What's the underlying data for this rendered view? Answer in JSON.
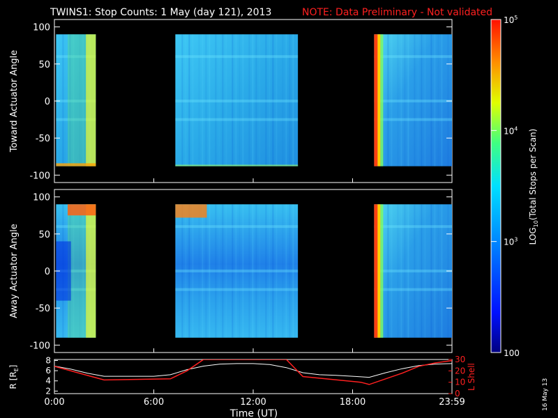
{
  "title": {
    "main": "TWINS1: Stop Counts:  1 May (day 121), 2013",
    "note": "NOTE: Data Preliminary - Not validated",
    "note_color": "#ff2020"
  },
  "stamp": "16 May 13",
  "colorbar": {
    "label_prefix": "LOG",
    "label_sub": "10",
    "label_suffix": "(Total Stops per Scan)",
    "ticks": [
      {
        "base": "10",
        "exp": "5",
        "value": 100000
      },
      {
        "base": "10",
        "exp": "4",
        "value": 10000
      },
      {
        "base": "10",
        "exp": "3",
        "value": 1000
      },
      {
        "base": "100",
        "exp": "",
        "value": 100
      }
    ],
    "range": [
      100,
      100000
    ],
    "scale": "log"
  },
  "chart_data": [
    {
      "type": "heatmap",
      "ylabel": "Toward Actuator Angle",
      "ylim": [
        -110,
        110
      ],
      "yticks": [
        "100",
        "50",
        "0",
        "-50",
        "-100"
      ],
      "xlim_hours": [
        0,
        24
      ],
      "data_y_range": [
        -88,
        90
      ],
      "segments_hours": [
        [
          0.1,
          2.5
        ],
        [
          7.3,
          14.7
        ],
        [
          19.3,
          24.0
        ]
      ],
      "gaps_hours": [
        [
          2.5,
          7.3
        ],
        [
          14.7,
          19.3
        ]
      ],
      "typical_counts": 1000,
      "peak_counts": 100000
    },
    {
      "type": "heatmap",
      "ylabel": "Away Actuator Angle",
      "ylim": [
        -110,
        110
      ],
      "yticks": [
        "100",
        "50",
        "0",
        "-50",
        "-100"
      ],
      "xlim_hours": [
        0,
        24
      ],
      "data_y_range": [
        -90,
        90
      ],
      "segments_hours": [
        [
          0.1,
          2.5
        ],
        [
          7.3,
          14.7
        ],
        [
          19.3,
          24.0
        ]
      ],
      "gaps_hours": [
        [
          2.5,
          7.3
        ],
        [
          14.7,
          19.3
        ]
      ],
      "typical_counts": 1000,
      "peak_counts": 100000
    },
    {
      "type": "line",
      "xlabel": "Time (UT)",
      "xticks": [
        "0:00",
        "6:00",
        "12:00",
        "18:00",
        "23:59"
      ],
      "xtick_hours": [
        0,
        6,
        12,
        18,
        24
      ],
      "left_axis": {
        "label_prefix": "R [R",
        "label_sub": "E",
        "label_suffix": "]",
        "yticks": [
          "8",
          "6",
          "4",
          "2"
        ],
        "ylim": [
          1.5,
          8.2
        ]
      },
      "right_axis": {
        "label": "L Shell",
        "yticks": [
          "30",
          "20",
          "10",
          "0"
        ],
        "ylim": [
          0,
          30
        ],
        "color": "#ff2020"
      },
      "series": [
        {
          "axis": "left",
          "color": "#ffffff",
          "x": [
            0,
            1,
            2,
            3,
            4,
            5,
            6,
            7,
            8,
            9,
            10,
            11,
            12,
            13,
            14,
            15,
            16,
            17,
            18,
            19,
            20,
            21,
            22,
            23,
            24
          ],
          "y": [
            6.9,
            6.3,
            5.5,
            4.9,
            4.9,
            4.9,
            4.9,
            5.2,
            6.2,
            6.9,
            7.3,
            7.4,
            7.4,
            7.2,
            6.6,
            5.6,
            5.2,
            5.1,
            4.9,
            4.7,
            5.6,
            6.4,
            7.0,
            7.3,
            7.4
          ]
        },
        {
          "axis": "right",
          "color": "#ff2020",
          "x": [
            0,
            2,
            3,
            7,
            8,
            9,
            14,
            15,
            18.5,
            19,
            21,
            22,
            23,
            24
          ],
          "y": [
            24,
            16,
            12,
            13,
            20,
            30,
            30,
            15,
            10,
            8,
            18,
            24,
            27,
            29
          ]
        }
      ]
    }
  ]
}
